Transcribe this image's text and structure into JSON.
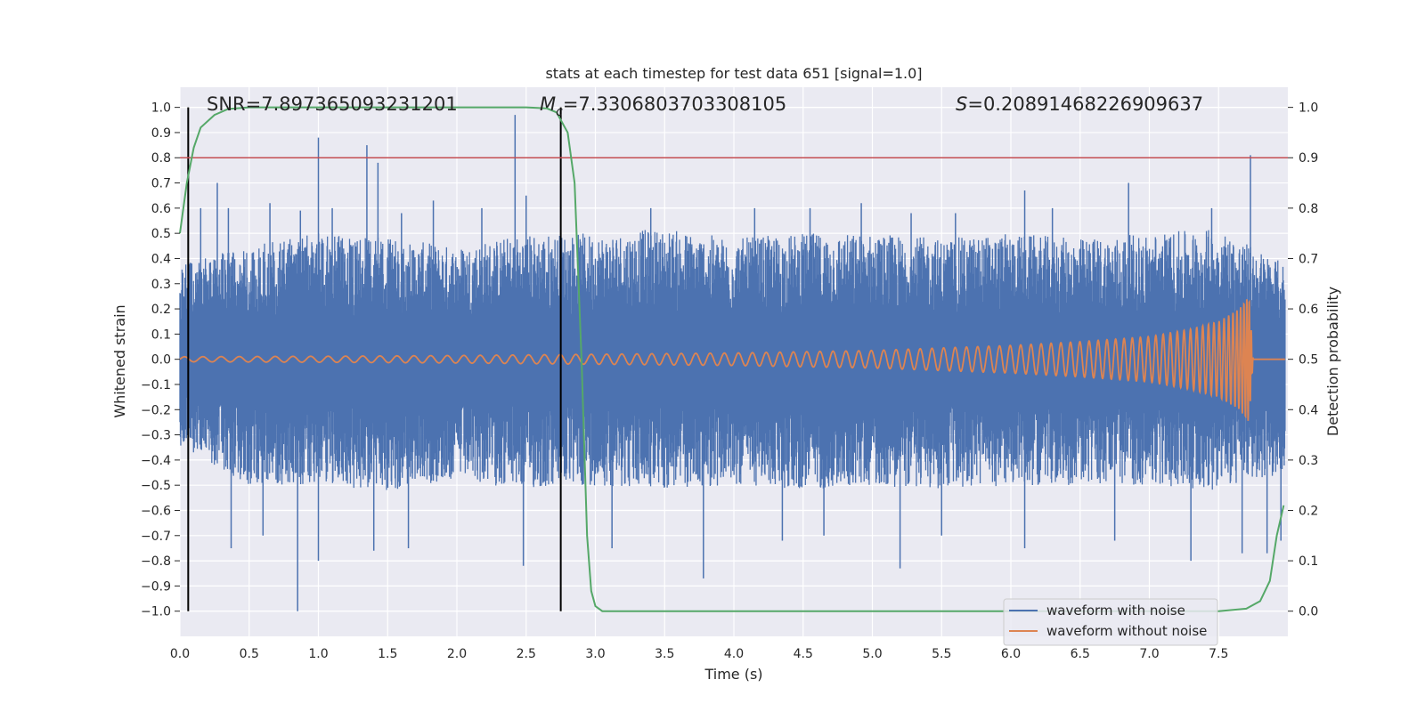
{
  "chart_data": {
    "type": "line",
    "title": "stats at each timestep for test data 651 [signal=1.0]",
    "xlabel": "Time (s)",
    "ylabel": "Whitened strain",
    "y2label": "Detection probability",
    "xlim": [
      0.0,
      8.0
    ],
    "ylim": [
      -1.1,
      1.08
    ],
    "y2lim": [
      -0.05,
      1.04
    ],
    "x_ticks": [
      "0.0",
      "0.5",
      "1.0",
      "1.5",
      "2.0",
      "2.5",
      "3.0",
      "3.5",
      "4.0",
      "4.5",
      "5.0",
      "5.5",
      "6.0",
      "6.5",
      "7.0",
      "7.5"
    ],
    "x_tick_values": [
      0.0,
      0.5,
      1.0,
      1.5,
      2.0,
      2.5,
      3.0,
      3.5,
      4.0,
      4.5,
      5.0,
      5.5,
      6.0,
      6.5,
      7.0,
      7.5
    ],
    "y_ticks": [
      "1.0",
      "0.9",
      "0.8",
      "0.7",
      "0.6",
      "0.5",
      "0.4",
      "0.3",
      "0.2",
      "0.1",
      "0.0",
      "−0.1",
      "−0.2",
      "−0.3",
      "−0.4",
      "−0.5",
      "−0.6",
      "−0.7",
      "−0.8",
      "−0.9",
      "−1.0"
    ],
    "y_tick_values": [
      1.0,
      0.9,
      0.8,
      0.7,
      0.6,
      0.5,
      0.4,
      0.3,
      0.2,
      0.1,
      0.0,
      -0.1,
      -0.2,
      -0.3,
      -0.4,
      -0.5,
      -0.6,
      -0.7,
      -0.8,
      -0.9,
      -1.0
    ],
    "y2_ticks": [
      "1.0",
      "0.9",
      "0.8",
      "0.7",
      "0.6",
      "0.5",
      "0.4",
      "0.3",
      "0.2",
      "0.1",
      "0.0"
    ],
    "y2_tick_values": [
      1.0,
      0.9,
      0.8,
      0.7,
      0.6,
      0.5,
      0.4,
      0.3,
      0.2,
      0.1,
      0.0
    ],
    "stats": {
      "snr_label": "SNR=7.897365093231201",
      "mc_prefix": "M",
      "mc_sub": "c",
      "mc_value": "=7.3306803703308105",
      "s_prefix": "S",
      "s_value": "=0.20891468226909637"
    },
    "threshold": {
      "value": 0.9,
      "axis": "y2",
      "color": "#c44e52"
    },
    "vertical_markers": [
      0.06,
      2.75
    ],
    "series": [
      {
        "name": "waveform with noise",
        "color": "#4c72b0",
        "envelope_upper": [
          [
            0.0,
            0.38
          ],
          [
            0.5,
            0.45
          ],
          [
            1.0,
            0.5
          ],
          [
            1.5,
            0.48
          ],
          [
            2.0,
            0.45
          ],
          [
            2.5,
            0.5
          ],
          [
            3.0,
            0.5
          ],
          [
            3.5,
            0.52
          ],
          [
            4.0,
            0.48
          ],
          [
            4.5,
            0.5
          ],
          [
            5.0,
            0.5
          ],
          [
            5.5,
            0.48
          ],
          [
            6.0,
            0.5
          ],
          [
            6.5,
            0.48
          ],
          [
            7.0,
            0.5
          ],
          [
            7.5,
            0.52
          ],
          [
            7.98,
            0.38
          ]
        ],
        "envelope_lower": [
          [
            0.0,
            -0.35
          ],
          [
            0.5,
            -0.5
          ],
          [
            1.0,
            -0.5
          ],
          [
            1.5,
            -0.52
          ],
          [
            2.0,
            -0.48
          ],
          [
            2.5,
            -0.52
          ],
          [
            3.0,
            -0.5
          ],
          [
            3.5,
            -0.52
          ],
          [
            4.0,
            -0.5
          ],
          [
            4.5,
            -0.52
          ],
          [
            5.0,
            -0.5
          ],
          [
            5.5,
            -0.52
          ],
          [
            6.0,
            -0.5
          ],
          [
            6.5,
            -0.5
          ],
          [
            7.0,
            -0.5
          ],
          [
            7.5,
            -0.52
          ],
          [
            7.98,
            -0.45
          ]
        ],
        "spikes": [
          [
            0.15,
            0.6
          ],
          [
            0.27,
            0.7
          ],
          [
            0.35,
            0.6
          ],
          [
            0.65,
            0.62
          ],
          [
            0.87,
            0.59
          ],
          [
            1.0,
            0.88
          ],
          [
            1.1,
            0.6
          ],
          [
            1.35,
            0.85
          ],
          [
            1.43,
            0.78
          ],
          [
            1.6,
            0.58
          ],
          [
            1.83,
            0.63
          ],
          [
            2.18,
            0.6
          ],
          [
            2.42,
            0.97
          ],
          [
            2.5,
            0.65
          ],
          [
            3.4,
            0.6
          ],
          [
            4.15,
            0.6
          ],
          [
            4.55,
            0.6
          ],
          [
            4.92,
            0.62
          ],
          [
            5.28,
            0.58
          ],
          [
            5.6,
            0.58
          ],
          [
            6.1,
            0.67
          ],
          [
            6.3,
            0.6
          ],
          [
            6.85,
            0.7
          ],
          [
            7.45,
            0.6
          ],
          [
            7.73,
            0.81
          ],
          [
            0.37,
            -0.75
          ],
          [
            0.6,
            -0.7
          ],
          [
            0.85,
            -1.0
          ],
          [
            1.0,
            -0.8
          ],
          [
            1.4,
            -0.76
          ],
          [
            1.65,
            -0.75
          ],
          [
            2.48,
            -0.82
          ],
          [
            3.12,
            -0.75
          ],
          [
            3.78,
            -0.87
          ],
          [
            4.35,
            -0.72
          ],
          [
            4.65,
            -0.7
          ],
          [
            5.2,
            -0.83
          ],
          [
            5.5,
            -0.7
          ],
          [
            6.1,
            -0.75
          ],
          [
            6.75,
            -0.72
          ],
          [
            7.3,
            -0.8
          ],
          [
            7.67,
            -0.77
          ],
          [
            7.85,
            -0.77
          ],
          [
            7.95,
            -0.72
          ]
        ]
      },
      {
        "name": "waveform without noise",
        "color": "#dd8452",
        "amplitude_envelope": [
          [
            0.0,
            0.01
          ],
          [
            1.0,
            0.012
          ],
          [
            2.0,
            0.015
          ],
          [
            3.0,
            0.02
          ],
          [
            4.0,
            0.025
          ],
          [
            5.0,
            0.035
          ],
          [
            6.0,
            0.055
          ],
          [
            6.5,
            0.07
          ],
          [
            7.0,
            0.09
          ],
          [
            7.3,
            0.12
          ],
          [
            7.5,
            0.15
          ],
          [
            7.65,
            0.2
          ],
          [
            7.72,
            0.25
          ],
          [
            7.75,
            0.0
          ],
          [
            7.98,
            0.0
          ]
        ]
      },
      {
        "name": "detection probability",
        "axis": "y2",
        "color": "#55a868",
        "points": [
          [
            0.0,
            0.75
          ],
          [
            0.05,
            0.85
          ],
          [
            0.1,
            0.92
          ],
          [
            0.15,
            0.96
          ],
          [
            0.25,
            0.985
          ],
          [
            0.35,
            0.997
          ],
          [
            0.5,
            1.0
          ],
          [
            1.0,
            1.0
          ],
          [
            2.0,
            1.0
          ],
          [
            2.5,
            1.0
          ],
          [
            2.65,
            0.998
          ],
          [
            2.72,
            0.99
          ],
          [
            2.8,
            0.95
          ],
          [
            2.85,
            0.85
          ],
          [
            2.9,
            0.5
          ],
          [
            2.94,
            0.15
          ],
          [
            2.97,
            0.04
          ],
          [
            3.0,
            0.01
          ],
          [
            3.05,
            0.0
          ],
          [
            4.0,
            0.0
          ],
          [
            5.0,
            0.0
          ],
          [
            6.0,
            0.0
          ],
          [
            7.0,
            0.0
          ],
          [
            7.5,
            0.0
          ],
          [
            7.7,
            0.005
          ],
          [
            7.8,
            0.02
          ],
          [
            7.87,
            0.06
          ],
          [
            7.92,
            0.15
          ],
          [
            7.97,
            0.21
          ]
        ]
      }
    ],
    "legend": {
      "placement": "bottom-right",
      "entries": [
        {
          "label": "waveform with noise",
          "color": "#4c72b0"
        },
        {
          "label": "waveform without noise",
          "color": "#dd8452"
        }
      ]
    }
  }
}
